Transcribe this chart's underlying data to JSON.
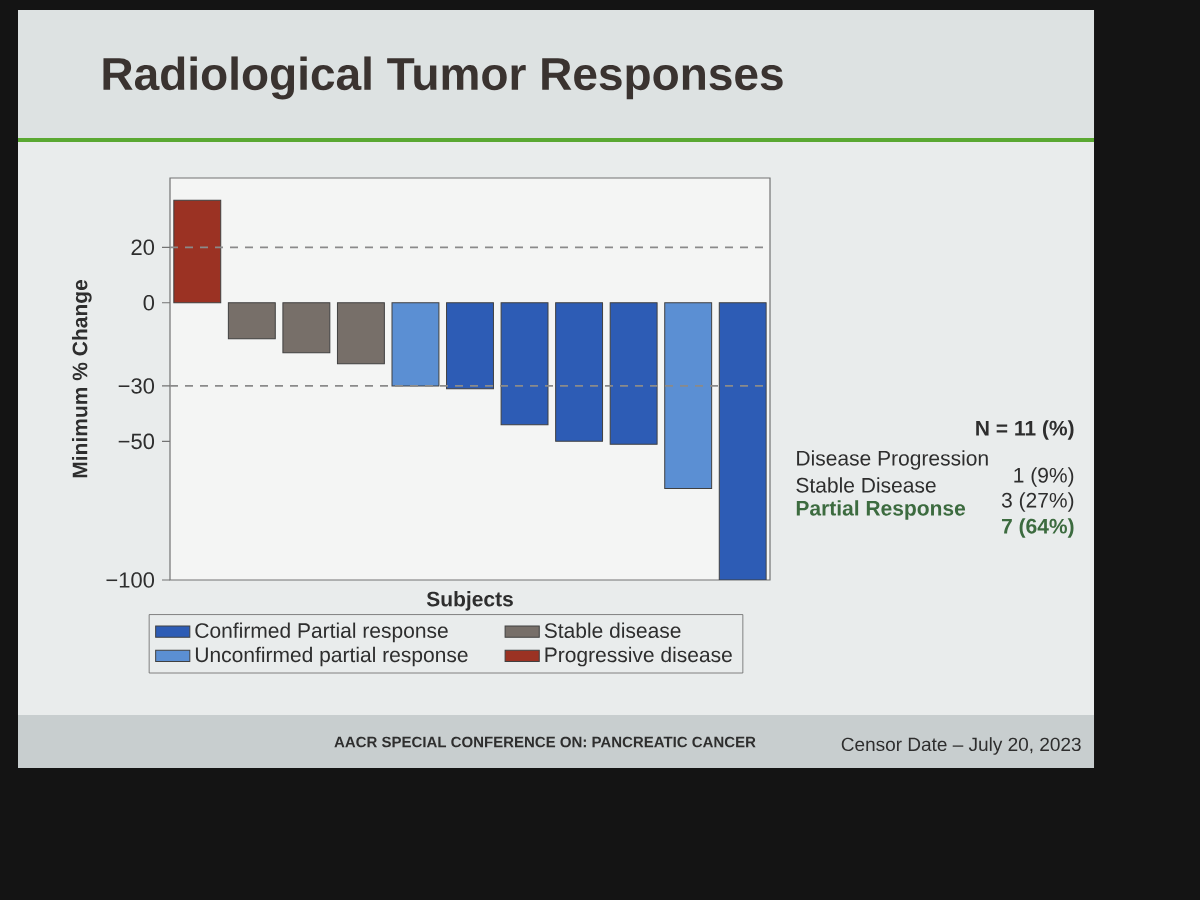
{
  "chart_data": {
    "type": "bar",
    "title": "Radiological Tumor Responses",
    "ylabel": "Minimum % Change",
    "xlabel": "Subjects",
    "categories": [
      null,
      null,
      null,
      null,
      null,
      null,
      null,
      null,
      null,
      null,
      null
    ],
    "series": [
      {
        "name": "Confirmed Partial response",
        "color": "#2d5cb5",
        "values": [
          null,
          null,
          null,
          null,
          null,
          -31,
          -44,
          -50,
          -51,
          null,
          -100
        ]
      },
      {
        "name": "Unconfirmed partial response",
        "color": "#5b8fd3",
        "values": [
          null,
          null,
          null,
          null,
          -30,
          null,
          null,
          null,
          null,
          -67,
          null
        ]
      },
      {
        "name": "Stable disease",
        "color": "#776f69",
        "values": [
          null,
          -13,
          -18,
          -22,
          null,
          null,
          null,
          null,
          null,
          null,
          null
        ]
      },
      {
        "name": "Progressive disease",
        "color": "#9b3223",
        "values": [
          37,
          null,
          null,
          null,
          null,
          null,
          null,
          null,
          null,
          null,
          null
        ]
      }
    ],
    "ylim": [
      -100,
      45
    ],
    "yticks": [
      20,
      0,
      {
        "value": -30,
        "label": "−30"
      },
      {
        "value": -50,
        "label": "−50"
      },
      {
        "value": -100,
        "label": "−100"
      }
    ],
    "ref_lines": [
      {
        "axis": "y",
        "value": 20,
        "color": "#8a8a8a",
        "line_style": "dashed"
      },
      {
        "axis": "y",
        "value": -30,
        "color": "#8a8a8a",
        "line_style": "dashed"
      }
    ],
    "legend": "bottom",
    "annotations": [
      "N = 11 (%)",
      "Disease Progression",
      "Stable Disease",
      "Partial Response",
      "1 (9%)",
      "3 (27%)",
      "7 (64%)",
      "AACR SPECIAL CONFERENCE ON: PANCREATIC CANCER",
      "Censor Date – July 20, 2023"
    ]
  }
}
